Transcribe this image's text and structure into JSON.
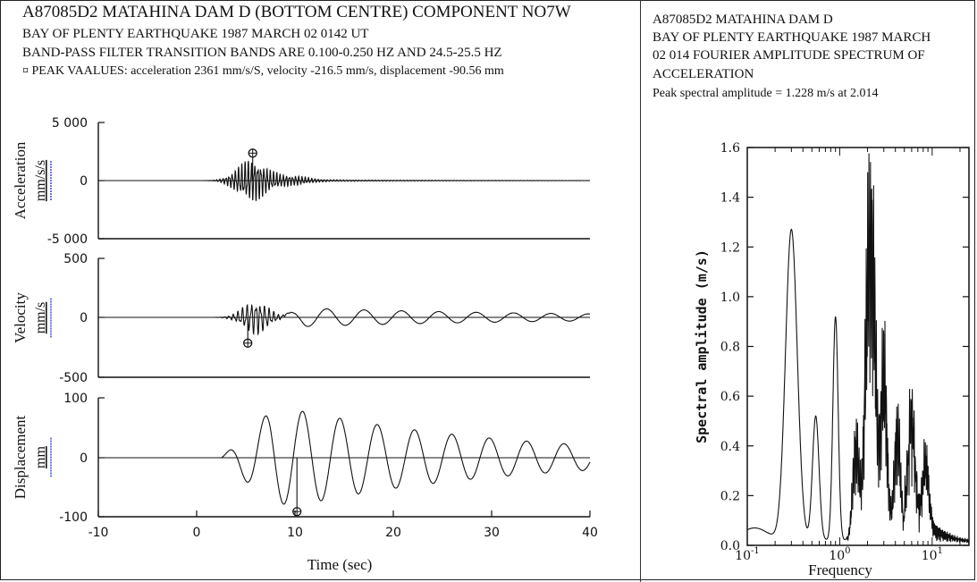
{
  "left_header": {
    "title": "A87085D2 MATAHINA DAM D (BOTTOM CENTRE) COMPONENT NO7W",
    "line1": "BAY OF PLENTY EARTHQUAKE 1987 MARCH 02 0142 UT",
    "line2": "BAND-PASS FILTER TRANSITION BANDS ARE 0.100-0.250 HZ AND 24.5-25.5 HZ",
    "line3": "¤ PEAK VAALUES: acceleration 2361 mm/s/S, velocity -216.5 mm/s, displacement -90.56 mm"
  },
  "right_header": {
    "line1": "A87085D2 MATAHINA DAM D",
    "line2": "BAY OF PLENTY EARTHQUAKE 1987 MARCH",
    "line3": "02 014 FOURIER AMPLITUDE SPECTRUM OF",
    "line4": "ACCELERATION",
    "line5": "Peak spectral amplitude = 1.228 m/s at 2.014"
  },
  "chart_data": [
    {
      "type": "line",
      "panel": "acceleration",
      "ylabel": "Acceleration",
      "unit": "mm/s/s",
      "ylim": [
        -5000,
        5000
      ],
      "yticks": [
        "5 000",
        "0",
        "-5 000"
      ],
      "xlim": [
        -10,
        40
      ],
      "peak": {
        "x": 5.7,
        "y": 2361
      },
      "trace": {
        "start": -5,
        "end": 40,
        "env_center": 5.5,
        "env_width": 2.0,
        "env_amp": 1800,
        "freq": 3.1,
        "rise_start": -1
      }
    },
    {
      "type": "line",
      "panel": "velocity",
      "ylabel": "Velocity",
      "unit": "mm/s",
      "ylim": [
        -500,
        500
      ],
      "yticks": [
        "500",
        "0",
        "-500"
      ],
      "xlim": [
        -10,
        40
      ],
      "peak": {
        "x": 5.2,
        "y": -216.5
      },
      "trace": {
        "start": -5,
        "end": 40,
        "burst_center": 6,
        "burst_amp": 150,
        "burst_freq": 2.2,
        "wave_amp": 85,
        "wave_period": 3.8,
        "wave_start": 8,
        "decay": 30
      }
    },
    {
      "type": "line",
      "panel": "displacement",
      "ylabel": "Displacement",
      "unit": "mm",
      "ylim": [
        -100,
        100
      ],
      "yticks": [
        "100",
        "0",
        "-100"
      ],
      "xlim": [
        -10,
        40
      ],
      "xticks": [
        "-10",
        "0",
        "10",
        "20",
        "30",
        "40"
      ],
      "xlabel": "Time (sec)",
      "peak": {
        "x": 10.2,
        "y": -90.56
      },
      "trace": {
        "start": -5,
        "end": 40,
        "amp": 78,
        "period": 3.8,
        "onset": 2.5,
        "peak_time": 11,
        "decay": 22
      }
    },
    {
      "type": "line",
      "panel": "fourier_spectrum",
      "xlabel": "Frequency",
      "ylabel": "Spectral amplitude (m/s)",
      "xscale": "log",
      "xlim": [
        0.1,
        25
      ],
      "ylim": [
        0,
        1.6
      ],
      "yticks": [
        "0.0",
        "0.2",
        "0.4",
        "0.6",
        "0.8",
        "1.0",
        "1.2",
        "1.4",
        "1.6"
      ],
      "xtick_base": "10",
      "xtick_exps": [
        "-1",
        "0",
        "1"
      ],
      "peaks": [
        {
          "f": 0.3,
          "a": 1.25,
          "w": 0.09
        },
        {
          "f": 0.55,
          "a": 0.5,
          "w": 0.05
        },
        {
          "f": 0.9,
          "a": 0.9,
          "w": 0.04
        },
        {
          "f": 1.5,
          "a": 0.55,
          "w": 0.05
        },
        {
          "f": 2.0,
          "a": 1.2,
          "w": 0.05
        },
        {
          "f": 2.3,
          "a": 1.28,
          "w": 0.05
        },
        {
          "f": 3.0,
          "a": 0.95,
          "w": 0.05
        },
        {
          "f": 4.2,
          "a": 0.62,
          "w": 0.05
        },
        {
          "f": 6.0,
          "a": 0.58,
          "w": 0.05
        },
        {
          "f": 8.5,
          "a": 0.35,
          "w": 0.05
        }
      ]
    }
  ]
}
